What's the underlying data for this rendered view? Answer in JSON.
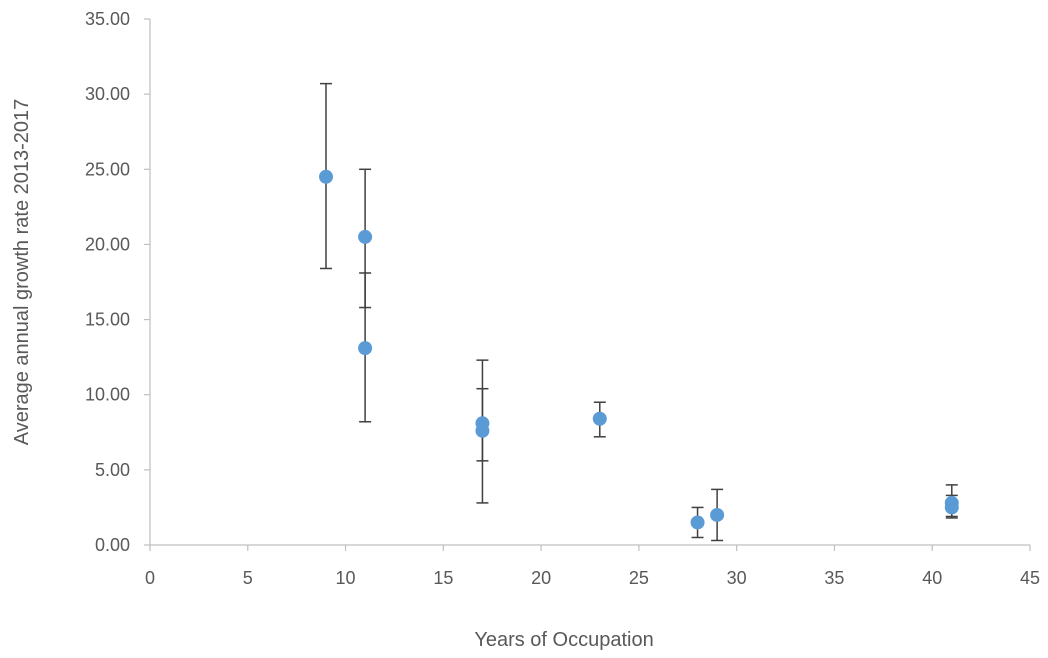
{
  "chart_data": {
    "type": "scatter",
    "title": "",
    "xlabel": "Years of Occupation",
    "ylabel": "Average annual growth rate 2013-2017",
    "xlim": [
      0,
      45
    ],
    "ylim": [
      0,
      35
    ],
    "x_ticks": [
      0,
      5,
      10,
      15,
      20,
      25,
      30,
      35,
      40,
      45
    ],
    "y_ticks": [
      "0.00",
      "5.00",
      "10.00",
      "15.00",
      "20.00",
      "25.00",
      "30.00",
      "35.00"
    ],
    "y_tick_values": [
      0,
      5,
      10,
      15,
      20,
      25,
      30,
      35
    ],
    "grid": false,
    "legend": "none",
    "marker_color": "#5b9bd5",
    "error_bar_color": "#404040",
    "points": [
      {
        "x": 9,
        "y": 24.5,
        "err_low": 18.4,
        "err_high": 30.7
      },
      {
        "x": 11,
        "y": 20.5,
        "err_low": 15.8,
        "err_high": 25.0
      },
      {
        "x": 11,
        "y": 13.1,
        "err_low": 8.2,
        "err_high": 18.1
      },
      {
        "x": 17,
        "y": 8.1,
        "err_low": 5.6,
        "err_high": 10.4
      },
      {
        "x": 17,
        "y": 7.6,
        "err_low": 2.8,
        "err_high": 12.3
      },
      {
        "x": 23,
        "y": 8.4,
        "err_low": 7.2,
        "err_high": 9.5
      },
      {
        "x": 28,
        "y": 1.5,
        "err_low": 0.5,
        "err_high": 2.5
      },
      {
        "x": 29,
        "y": 2.0,
        "err_low": 0.3,
        "err_high": 3.7
      },
      {
        "x": 41,
        "y": 2.8,
        "err_low": 1.8,
        "err_high": 3.3
      },
      {
        "x": 41,
        "y": 2.5,
        "err_low": 1.9,
        "err_high": 4.0
      }
    ]
  }
}
